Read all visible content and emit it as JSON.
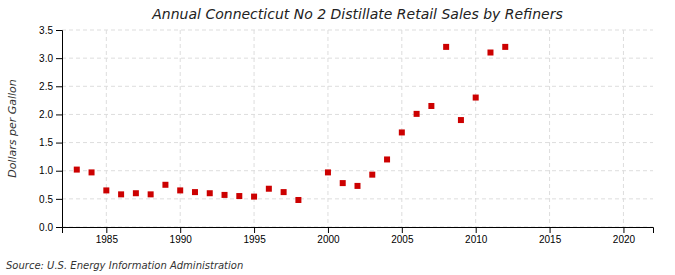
{
  "chart_data": {
    "type": "scatter",
    "title": "Annual Connecticut No 2 Distillate Retail Sales by Refiners",
    "ylabel": "Dollars per Gallon",
    "annotations": [
      "Source: U.S. Energy Information Administration"
    ],
    "x": [
      1983,
      1984,
      1985,
      1986,
      1987,
      1988,
      1989,
      1990,
      1991,
      1992,
      1993,
      1994,
      1995,
      1996,
      1997,
      1998,
      2000,
      2001,
      2002,
      2003,
      2004,
      2005,
      2006,
      2007,
      2008,
      2009,
      2010,
      2011,
      2012
    ],
    "values": [
      1.02,
      0.97,
      0.65,
      0.58,
      0.6,
      0.58,
      0.75,
      0.65,
      0.62,
      0.6,
      0.57,
      0.55,
      0.54,
      0.68,
      0.62,
      0.48,
      0.97,
      0.78,
      0.73,
      0.93,
      1.2,
      1.68,
      2.01,
      2.15,
      3.2,
      1.9,
      2.3,
      3.1,
      3.2
    ],
    "color": "#CC0000",
    "marker": "square",
    "xlim": [
      1982,
      2022
    ],
    "ylim": [
      0.0,
      3.5
    ],
    "xticks": [
      1985,
      1990,
      1995,
      2000,
      2005,
      2010,
      2015,
      2020
    ],
    "yticks": [
      {
        "value": 0.0,
        "label": "0.0"
      },
      0.5,
      {
        "value": 1.0,
        "label": "1.0"
      },
      1.5,
      {
        "value": 2.0,
        "label": "2.0"
      },
      2.5,
      {
        "value": 3.0,
        "label": "3.0"
      },
      3.5
    ],
    "grid": true
  }
}
